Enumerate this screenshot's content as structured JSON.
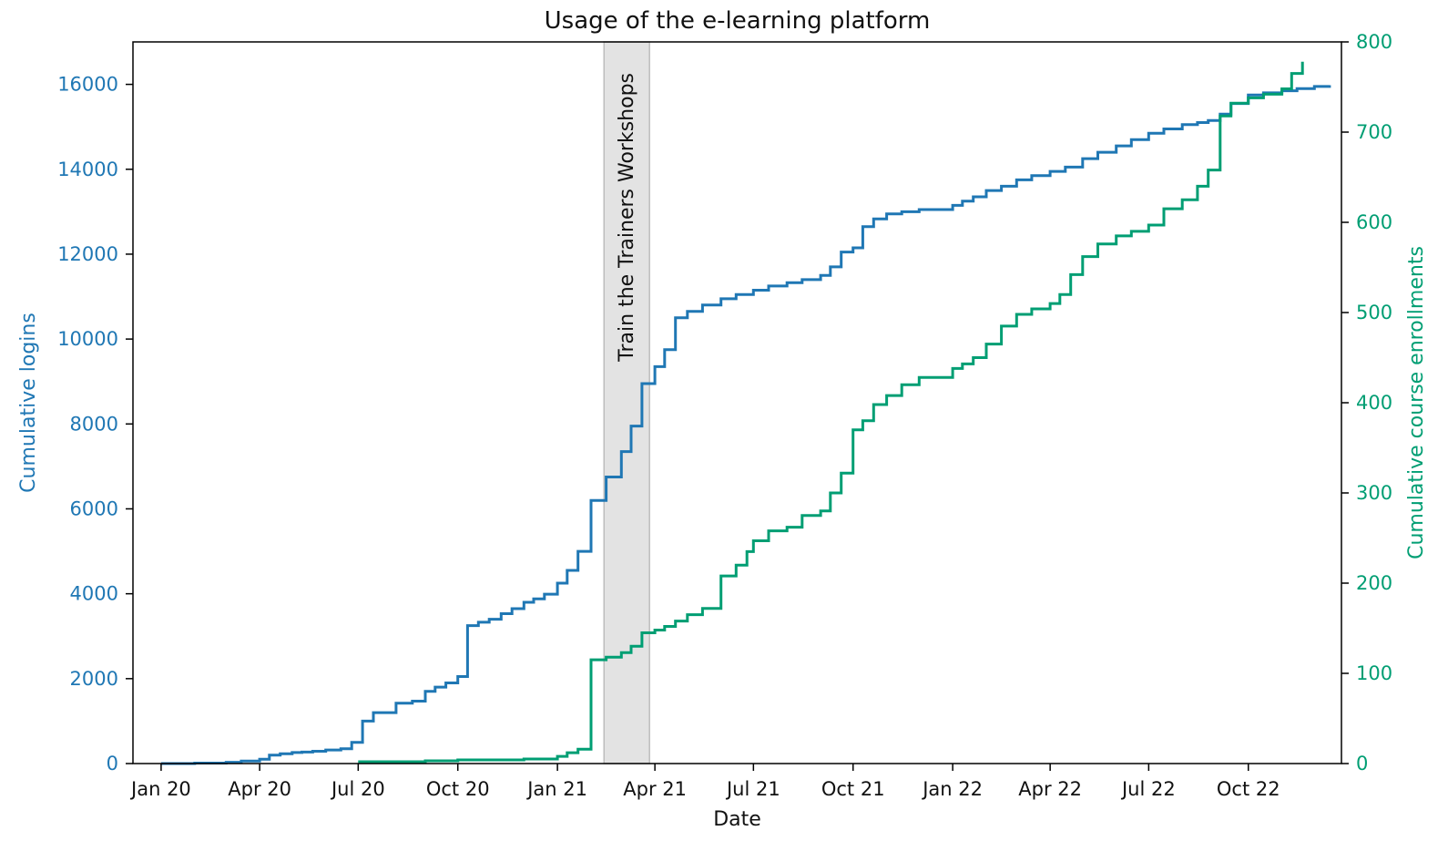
{
  "chart_data": {
    "type": "line",
    "step": true,
    "title": "Usage of the e-learning platform",
    "xlabel": "Date",
    "ylabel": "Cumulative logins",
    "y2label": "Cumulative course enrollments",
    "xlim": [
      "2019-12-06",
      "2022-12-26"
    ],
    "ylim": [
      0,
      17000
    ],
    "y2lim": [
      0,
      800
    ],
    "xticks": [
      {
        "date": "2020-01-01",
        "label": "Jan 20"
      },
      {
        "date": "2020-04-01",
        "label": "Apr 20"
      },
      {
        "date": "2020-07-01",
        "label": "Jul 20"
      },
      {
        "date": "2020-10-01",
        "label": "Oct 20"
      },
      {
        "date": "2021-01-01",
        "label": "Jan 21"
      },
      {
        "date": "2021-04-01",
        "label": "Apr 21"
      },
      {
        "date": "2021-07-01",
        "label": "Jul 21"
      },
      {
        "date": "2021-10-01",
        "label": "Oct 21"
      },
      {
        "date": "2022-01-01",
        "label": "Jan 22"
      },
      {
        "date": "2022-04-01",
        "label": "Apr 22"
      },
      {
        "date": "2022-07-01",
        "label": "Jul 22"
      },
      {
        "date": "2022-10-01",
        "label": "Oct 22"
      }
    ],
    "yticks": [
      0,
      2000,
      4000,
      6000,
      8000,
      10000,
      12000,
      14000,
      16000
    ],
    "y2ticks": [
      0,
      100,
      200,
      300,
      400,
      500,
      600,
      700,
      800
    ],
    "colors": {
      "logins": "#1f77b4",
      "enrollments": "#009e73",
      "span": "#e3e3e3",
      "axis": "#000000"
    },
    "annotation": {
      "text": "Train the Trainers Workshops",
      "start": "2021-02-13",
      "end": "2021-03-27"
    },
    "series": [
      {
        "name": "Cumulative logins",
        "axis": "left",
        "x": [
          "2020-01-01",
          "2020-02-01",
          "2020-03-01",
          "2020-03-15",
          "2020-04-01",
          "2020-04-10",
          "2020-04-20",
          "2020-05-01",
          "2020-05-10",
          "2020-05-20",
          "2020-06-01",
          "2020-06-15",
          "2020-06-25",
          "2020-07-05",
          "2020-07-15",
          "2020-08-05",
          "2020-08-20",
          "2020-09-01",
          "2020-09-10",
          "2020-09-20",
          "2020-10-01",
          "2020-10-10",
          "2020-10-20",
          "2020-10-30",
          "2020-11-10",
          "2020-11-20",
          "2020-12-01",
          "2020-12-10",
          "2020-12-20",
          "2021-01-01",
          "2021-01-10",
          "2021-01-20",
          "2021-02-01",
          "2021-02-15",
          "2021-03-01",
          "2021-03-10",
          "2021-03-20",
          "2021-04-01",
          "2021-04-10",
          "2021-04-20",
          "2021-05-01",
          "2021-05-15",
          "2021-06-01",
          "2021-06-15",
          "2021-07-01",
          "2021-07-15",
          "2021-08-01",
          "2021-08-15",
          "2021-09-01",
          "2021-09-10",
          "2021-09-20",
          "2021-10-01",
          "2021-10-10",
          "2021-10-20",
          "2021-11-01",
          "2021-11-15",
          "2021-12-01",
          "2022-01-01",
          "2022-01-10",
          "2022-01-20",
          "2022-02-01",
          "2022-02-15",
          "2022-03-01",
          "2022-03-15",
          "2022-04-01",
          "2022-04-15",
          "2022-05-01",
          "2022-05-15",
          "2022-06-01",
          "2022-06-15",
          "2022-07-01",
          "2022-07-15",
          "2022-08-01",
          "2022-08-15",
          "2022-08-25",
          "2022-09-05",
          "2022-09-15",
          "2022-10-01",
          "2022-10-15",
          "2022-11-01",
          "2022-11-15",
          "2022-12-01",
          "2022-12-15"
        ],
        "values": [
          0,
          10,
          30,
          60,
          100,
          200,
          230,
          260,
          270,
          290,
          320,
          350,
          500,
          1000,
          1200,
          1420,
          1470,
          1700,
          1800,
          1900,
          2050,
          3250,
          3330,
          3400,
          3530,
          3650,
          3800,
          3880,
          3990,
          4250,
          4550,
          5000,
          6200,
          6750,
          7350,
          7950,
          8950,
          9350,
          9750,
          10500,
          10650,
          10800,
          10950,
          11050,
          11150,
          11250,
          11330,
          11400,
          11500,
          11700,
          12050,
          12150,
          12650,
          12830,
          12950,
          13000,
          13050,
          13150,
          13250,
          13350,
          13500,
          13600,
          13750,
          13850,
          13950,
          14050,
          14250,
          14400,
          14550,
          14700,
          14850,
          14950,
          15050,
          15100,
          15150,
          15300,
          15550,
          15750,
          15800,
          15850,
          15900,
          15950,
          15980
        ]
      },
      {
        "name": "Cumulative course enrollments",
        "axis": "right",
        "x": [
          "2020-07-01",
          "2020-09-01",
          "2020-10-01",
          "2020-12-01",
          "2021-01-01",
          "2021-01-10",
          "2021-01-20",
          "2021-02-01",
          "2021-02-15",
          "2021-03-01",
          "2021-03-10",
          "2021-03-20",
          "2021-04-01",
          "2021-04-10",
          "2021-04-20",
          "2021-05-01",
          "2021-05-15",
          "2021-06-01",
          "2021-06-15",
          "2021-06-25",
          "2021-07-01",
          "2021-07-15",
          "2021-08-01",
          "2021-08-15",
          "2021-09-01",
          "2021-09-10",
          "2021-09-20",
          "2021-10-01",
          "2021-10-10",
          "2021-10-20",
          "2021-11-01",
          "2021-11-15",
          "2021-12-01",
          "2022-01-01",
          "2022-01-10",
          "2022-01-20",
          "2022-02-01",
          "2022-02-15",
          "2022-03-01",
          "2022-03-15",
          "2022-04-01",
          "2022-04-10",
          "2022-04-20",
          "2022-05-01",
          "2022-05-15",
          "2022-06-01",
          "2022-06-15",
          "2022-07-01",
          "2022-07-15",
          "2022-08-01",
          "2022-08-15",
          "2022-08-25",
          "2022-09-05",
          "2022-09-15",
          "2022-10-01",
          "2022-10-15",
          "2022-11-01",
          "2022-11-10",
          "2022-11-20"
        ],
        "values": [
          2,
          3,
          4,
          5,
          8,
          12,
          16,
          115,
          118,
          123,
          130,
          145,
          148,
          152,
          158,
          165,
          172,
          208,
          220,
          235,
          247,
          258,
          262,
          275,
          280,
          300,
          322,
          370,
          380,
          398,
          408,
          420,
          428,
          438,
          443,
          450,
          465,
          485,
          498,
          504,
          510,
          520,
          542,
          562,
          576,
          585,
          590,
          597,
          615,
          625,
          640,
          658,
          718,
          732,
          738,
          742,
          748,
          765,
          778
        ]
      }
    ]
  }
}
